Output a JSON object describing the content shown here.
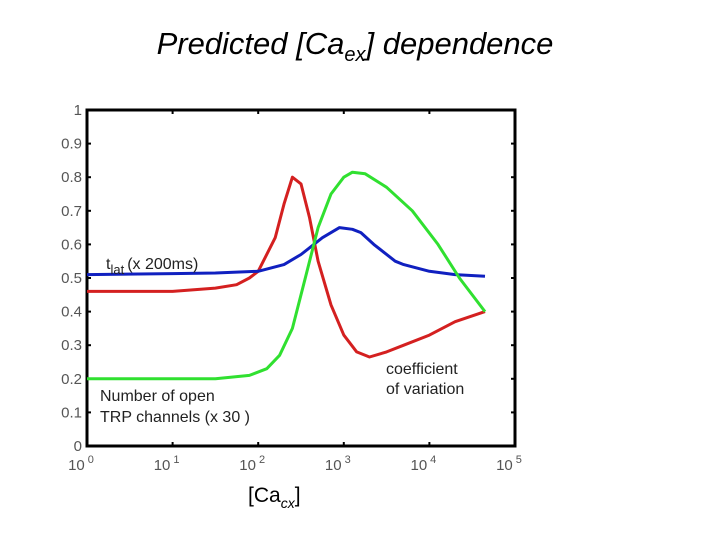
{
  "title": {
    "main": "Predicted [Ca",
    "sub": "ex",
    "end": "] dependence"
  },
  "chart_data": {
    "type": "line",
    "xscale": "log",
    "xlim": [
      1,
      100000
    ],
    "ylim": [
      0,
      1
    ],
    "grid": false,
    "xlabel": {
      "main": "[Ca",
      "sub": "cx",
      "end": "]"
    },
    "xticks": [
      {
        "base": "10",
        "exp": "0",
        "value": 1
      },
      {
        "base": "10",
        "exp": "1",
        "value": 10
      },
      {
        "base": "10",
        "exp": "2",
        "value": 100
      },
      {
        "base": "10",
        "exp": "3",
        "value": 1000
      },
      {
        "base": "10",
        "exp": "4",
        "value": 10000
      },
      {
        "base": "10",
        "exp": "5",
        "value": 100000
      }
    ],
    "yticks": [
      "0",
      "0.1",
      "0.2",
      "0.3",
      "0.4",
      "0.5",
      "0.6",
      "0.7",
      "0.8",
      "0.9",
      "1"
    ],
    "series": [
      {
        "name": "coefficient of variation",
        "color": "#d42020",
        "x": [
          1,
          10,
          31.6,
          56,
          79,
          100,
          158,
          200,
          251,
          316,
          398,
          501,
          708,
          1000,
          1413,
          1995,
          3162,
          5012,
          10000,
          19953,
          44668
        ],
        "y": [
          0.46,
          0.46,
          0.47,
          0.48,
          0.5,
          0.52,
          0.62,
          0.72,
          0.8,
          0.78,
          0.68,
          0.55,
          0.42,
          0.33,
          0.28,
          0.265,
          0.28,
          0.3,
          0.33,
          0.37,
          0.4
        ]
      },
      {
        "name": "t_lat (x 200ms)",
        "color": "#1020c0",
        "x": [
          1,
          10,
          31.6,
          100,
          200,
          316,
          562,
          891,
          1259,
          1585,
          2239,
          3981,
          5012,
          10000,
          19953,
          44668
        ],
        "y": [
          0.51,
          0.513,
          0.515,
          0.52,
          0.54,
          0.57,
          0.62,
          0.65,
          0.645,
          0.635,
          0.6,
          0.55,
          0.54,
          0.52,
          0.51,
          0.505
        ]
      },
      {
        "name": "Number of open TRP channels (x 30 )",
        "color": "#30e030",
        "x": [
          1,
          10,
          31.6,
          79,
          126,
          178,
          251,
          355,
          501,
          708,
          1000,
          1259,
          1778,
          3162,
          6310,
          12589,
          22387,
          44668
        ],
        "y": [
          0.2,
          0.2,
          0.2,
          0.21,
          0.23,
          0.27,
          0.35,
          0.5,
          0.65,
          0.75,
          0.8,
          0.815,
          0.81,
          0.77,
          0.7,
          0.6,
          0.5,
          0.4
        ]
      }
    ],
    "annotations": {
      "tlat_base": "t",
      "tlat_sub": "lat",
      "tlat_rest": "(x 200ms)",
      "cv_line1": "coefficient",
      "cv_line2": "of variation",
      "trp_line1": "Number of open",
      "trp_line2": "TRP channels (x 30 )"
    }
  }
}
